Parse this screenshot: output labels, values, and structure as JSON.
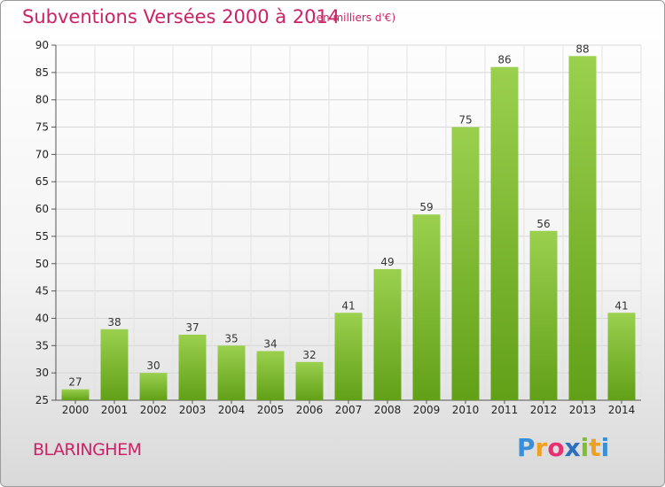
{
  "header": {
    "title": "Subventions Versées 2000 à 2014",
    "subtitle": "(en milliers d'€)"
  },
  "commune": "BLARINGHEM",
  "logo": {
    "text": "Proxiti",
    "letters": [
      "P",
      "r",
      "o",
      "x",
      "i",
      "t",
      "i"
    ],
    "colors": [
      "#3a8fd8",
      "#f0a020",
      "#e83070",
      "#2a6fc0",
      "#7cc030",
      "#f0a020",
      "#3a8fd8"
    ]
  },
  "chart_data": {
    "type": "bar",
    "title": "Subventions Versées 2000 à 2014",
    "subtitle": "(en milliers d'€)",
    "categories": [
      "2000",
      "2001",
      "2002",
      "2003",
      "2004",
      "2005",
      "2006",
      "2007",
      "2008",
      "2009",
      "2010",
      "2011",
      "2012",
      "2013",
      "2014"
    ],
    "values": [
      27,
      38,
      30,
      37,
      35,
      34,
      32,
      41,
      49,
      59,
      75,
      86,
      56,
      88,
      41
    ],
    "ylim": [
      25,
      90
    ],
    "yticks": [
      25,
      30,
      35,
      40,
      45,
      50,
      55,
      60,
      65,
      70,
      75,
      80,
      85,
      90
    ],
    "grid": true,
    "bar_color": "#7cc030",
    "bar_color_light": "#9ad04e",
    "bar_color_dark": "#62a018"
  }
}
